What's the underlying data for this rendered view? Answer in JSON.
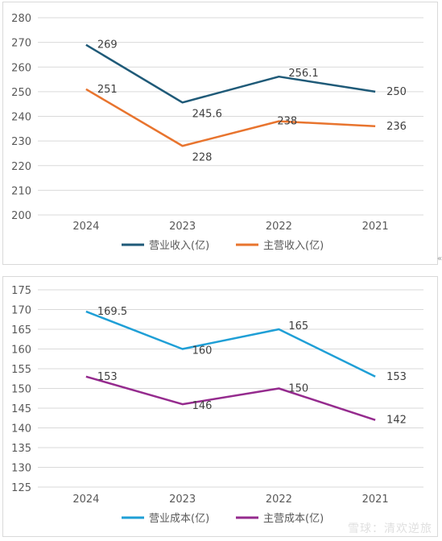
{
  "chart_data": [
    {
      "type": "line",
      "categories": [
        "2024",
        "2023",
        "2022",
        "2021"
      ],
      "ylim": [
        200,
        280
      ],
      "yticks": [
        200,
        210,
        220,
        230,
        240,
        250,
        260,
        270,
        280
      ],
      "grid": true,
      "legend_position": "bottom",
      "series": [
        {
          "name": "营业收入(亿)",
          "values": [
            269,
            245.6,
            256.1,
            250
          ],
          "labels": [
            "269",
            "245.6",
            "256.1",
            "250"
          ],
          "color": "#1f5a78"
        },
        {
          "name": "主营收入(亿)",
          "values": [
            251,
            228,
            238,
            236
          ],
          "labels": [
            "251",
            "228",
            "238",
            "236"
          ],
          "color": "#e8742e"
        }
      ]
    },
    {
      "type": "line",
      "categories": [
        "2024",
        "2023",
        "2022",
        "2021"
      ],
      "ylim": [
        125,
        175
      ],
      "yticks": [
        125,
        130,
        135,
        140,
        145,
        150,
        155,
        160,
        165,
        170,
        175
      ],
      "grid": true,
      "legend_position": "bottom",
      "series": [
        {
          "name": "营业成本(亿)",
          "values": [
            169.5,
            160,
            165,
            153
          ],
          "labels": [
            "169.5",
            "160",
            "165",
            "153"
          ],
          "color": "#1f9fd6"
        },
        {
          "name": "主营成本(亿)",
          "values": [
            153,
            146,
            150,
            142
          ],
          "labels": [
            "153",
            "146",
            "150",
            "142"
          ],
          "color": "#952b8e"
        }
      ]
    }
  ],
  "watermark": "雪球：清欢逆旅",
  "corner_mark": "«"
}
